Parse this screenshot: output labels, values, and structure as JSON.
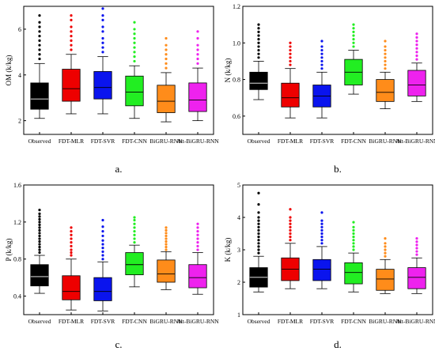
{
  "figure": {
    "colors": [
      "#000000",
      "#ee0000",
      "#0a14ee",
      "#22ee22",
      "#ff8c1a",
      "#ee22ee"
    ]
  },
  "chart_data": [
    {
      "type": "box",
      "panel_label": "a.",
      "ylabel": "OM (k/kg)",
      "ylim": [
        1.4,
        7.0
      ],
      "yticks": [
        2,
        4,
        6
      ],
      "categories": [
        "Observed",
        "FDT-MLR",
        "FDT-SVR",
        "FDT-CNN",
        "BiGRU-RNN",
        "Att-BiGRU-RNN"
      ],
      "boxes": [
        {
          "min": 2.1,
          "q1": 2.5,
          "median": 2.95,
          "q3": 3.65,
          "max": 4.5,
          "outliers": [
            4.7,
            4.9,
            5.1,
            5.3,
            5.5,
            5.7,
            5.9,
            6.1,
            6.3,
            6.6
          ]
        },
        {
          "min": 2.3,
          "q1": 2.85,
          "median": 3.4,
          "q3": 4.25,
          "max": 4.9,
          "outliers": [
            5.1,
            5.3,
            5.5,
            5.7,
            5.9,
            6.1,
            6.4,
            6.6
          ]
        },
        {
          "min": 2.3,
          "q1": 2.95,
          "median": 3.45,
          "q3": 4.15,
          "max": 4.8,
          "outliers": [
            5.0,
            5.2,
            5.4,
            5.6,
            5.9,
            6.1,
            6.4,
            6.6,
            6.9
          ]
        },
        {
          "min": 2.1,
          "q1": 2.65,
          "median": 3.25,
          "q3": 3.95,
          "max": 4.4,
          "outliers": [
            4.6,
            4.8,
            5.0,
            5.2,
            5.4,
            5.6,
            5.8,
            6.0,
            6.3
          ]
        },
        {
          "min": 1.95,
          "q1": 2.35,
          "median": 2.85,
          "q3": 3.55,
          "max": 4.1,
          "outliers": [
            4.3,
            4.5,
            4.7,
            4.9,
            5.1,
            5.3,
            5.6
          ]
        },
        {
          "min": 2.0,
          "q1": 2.4,
          "median": 2.9,
          "q3": 3.65,
          "max": 4.3,
          "outliers": [
            4.5,
            4.7,
            4.9,
            5.1,
            5.3,
            5.6,
            5.9
          ]
        }
      ]
    },
    {
      "type": "box",
      "panel_label": "b.",
      "ylabel": "N (k/kg)",
      "ylim": [
        0.5,
        1.2
      ],
      "yticks": [
        0.6,
        0.8,
        1.0,
        1.2
      ],
      "categories": [
        "Observed",
        "FDT-MLR",
        "FDT-SVR",
        "FDT-CNN",
        "BiGRU-RNN",
        "Att-BiGRU-RNN"
      ],
      "boxes": [
        {
          "min": 0.69,
          "q1": 0.745,
          "median": 0.78,
          "q3": 0.84,
          "max": 0.9,
          "outliers": [
            0.92,
            0.94,
            0.96,
            0.98,
            1.0,
            1.02,
            1.04,
            1.06,
            1.08,
            1.1
          ]
        },
        {
          "min": 0.59,
          "q1": 0.65,
          "median": 0.7,
          "q3": 0.78,
          "max": 0.86,
          "outliers": [
            0.88,
            0.9,
            0.92,
            0.94,
            0.96,
            0.98,
            1.0
          ]
        },
        {
          "min": 0.59,
          "q1": 0.65,
          "median": 0.71,
          "q3": 0.77,
          "max": 0.84,
          "outliers": [
            0.86,
            0.88,
            0.9,
            0.92,
            0.94,
            0.96,
            0.98,
            1.01
          ]
        },
        {
          "min": 0.72,
          "q1": 0.77,
          "median": 0.84,
          "q3": 0.91,
          "max": 0.96,
          "outliers": [
            0.98,
            1.0,
            1.02,
            1.04,
            1.06,
            1.08,
            1.1
          ]
        },
        {
          "min": 0.64,
          "q1": 0.68,
          "median": 0.73,
          "q3": 0.8,
          "max": 0.84,
          "outliers": [
            0.86,
            0.88,
            0.9,
            0.92,
            0.94,
            0.96,
            0.98,
            1.01
          ]
        },
        {
          "min": 0.68,
          "q1": 0.71,
          "median": 0.77,
          "q3": 0.85,
          "max": 0.89,
          "outliers": [
            0.91,
            0.93,
            0.95,
            0.97,
            0.99,
            1.01,
            1.03,
            1.05
          ]
        }
      ]
    },
    {
      "type": "box",
      "panel_label": "c.",
      "ylabel": "P (k/kg)",
      "ylim": [
        0.2,
        1.6
      ],
      "yticks": [
        0.4,
        0.8,
        1.2,
        1.6
      ],
      "categories": [
        "Observed",
        "FDT-MLR",
        "FDT-SVR",
        "FDT-CNN",
        "BiGRU-RNN",
        "Att-BiGRU-RNN"
      ],
      "boxes": [
        {
          "min": 0.43,
          "q1": 0.51,
          "median": 0.61,
          "q3": 0.74,
          "max": 0.84,
          "outliers": [
            0.87,
            0.9,
            0.93,
            0.96,
            0.99,
            1.02,
            1.05,
            1.08,
            1.11,
            1.14,
            1.17,
            1.2,
            1.23,
            1.26,
            1.29,
            1.33
          ]
        },
        {
          "min": 0.25,
          "q1": 0.36,
          "median": 0.45,
          "q3": 0.62,
          "max": 0.8,
          "outliers": [
            0.84,
            0.87,
            0.9,
            0.94,
            0.98,
            1.02,
            1.06,
            1.1,
            1.14
          ]
        },
        {
          "min": 0.24,
          "q1": 0.35,
          "median": 0.45,
          "q3": 0.6,
          "max": 0.77,
          "outliers": [
            0.8,
            0.84,
            0.88,
            0.92,
            0.96,
            1.0,
            1.05,
            1.1,
            1.15,
            1.22
          ]
        },
        {
          "min": 0.5,
          "q1": 0.63,
          "median": 0.74,
          "q3": 0.87,
          "max": 0.95,
          "outliers": [
            0.98,
            1.02,
            1.06,
            1.1,
            1.14,
            1.18,
            1.22,
            1.25
          ]
        },
        {
          "min": 0.47,
          "q1": 0.55,
          "median": 0.64,
          "q3": 0.79,
          "max": 0.88,
          "outliers": [
            0.9,
            0.93,
            0.96,
            0.99,
            1.02,
            1.05,
            1.08,
            1.11,
            1.14
          ]
        },
        {
          "min": 0.42,
          "q1": 0.49,
          "median": 0.6,
          "q3": 0.74,
          "max": 0.87,
          "outliers": [
            0.9,
            0.94,
            0.98,
            1.02,
            1.06,
            1.1,
            1.14,
            1.18
          ]
        }
      ]
    },
    {
      "type": "box",
      "panel_label": "d.",
      "ylabel": "K (k/kg)",
      "ylim": [
        1.0,
        5.0
      ],
      "yticks": [
        1,
        2,
        3,
        4,
        5
      ],
      "categories": [
        "Observed",
        "FDT-MLR",
        "FDT-SVR",
        "FDT-CNN",
        "BiGRU-RNN",
        "Att-BiGRU-RNN"
      ],
      "boxes": [
        {
          "min": 1.7,
          "q1": 1.85,
          "median": 2.15,
          "q3": 2.45,
          "max": 2.8,
          "outliers": [
            2.9,
            3.0,
            3.1,
            3.2,
            3.3,
            3.4,
            3.5,
            3.6,
            3.7,
            3.8,
            3.9,
            4.0,
            4.15,
            4.4,
            4.75
          ]
        },
        {
          "min": 1.8,
          "q1": 2.05,
          "median": 2.4,
          "q3": 2.75,
          "max": 3.2,
          "outliers": [
            3.3,
            3.4,
            3.5,
            3.6,
            3.7,
            3.8,
            3.9,
            4.0,
            4.25
          ]
        },
        {
          "min": 1.8,
          "q1": 2.05,
          "median": 2.4,
          "q3": 2.7,
          "max": 3.1,
          "outliers": [
            3.2,
            3.3,
            3.4,
            3.5,
            3.6,
            3.7,
            3.8,
            3.9,
            4.15
          ]
        },
        {
          "min": 1.7,
          "q1": 1.95,
          "median": 2.3,
          "q3": 2.6,
          "max": 2.9,
          "outliers": [
            3.0,
            3.1,
            3.2,
            3.3,
            3.4,
            3.5,
            3.6,
            3.7,
            3.85
          ]
        },
        {
          "min": 1.65,
          "q1": 1.75,
          "median": 2.1,
          "q3": 2.4,
          "max": 2.7,
          "outliers": [
            2.8,
            2.9,
            3.0,
            3.1,
            3.2,
            3.35
          ]
        },
        {
          "min": 1.65,
          "q1": 1.8,
          "median": 2.15,
          "q3": 2.45,
          "max": 2.75,
          "outliers": [
            2.85,
            2.95,
            3.05,
            3.15,
            3.25,
            3.35
          ]
        }
      ]
    }
  ]
}
